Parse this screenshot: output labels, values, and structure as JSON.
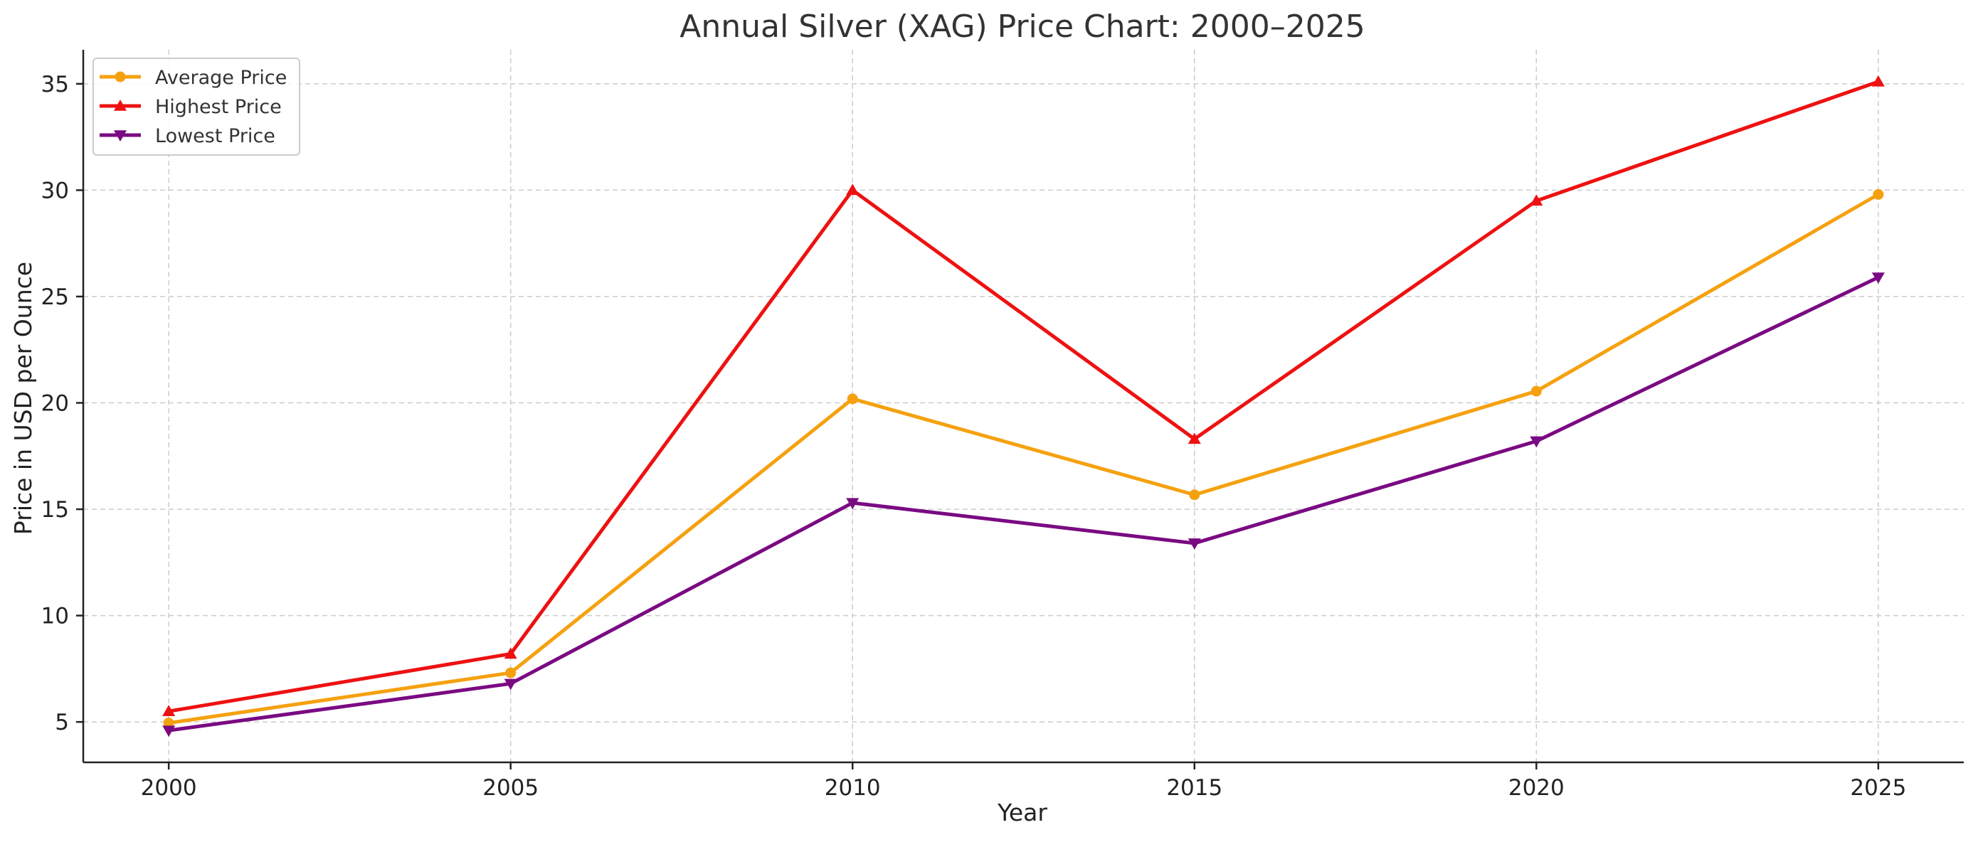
{
  "chart_data": {
    "type": "line",
    "title": "Annual Silver (XAG) Price Chart: 2000–2025",
    "xlabel": "Year",
    "ylabel": "Price in USD per Ounce",
    "x": [
      2000,
      2005,
      2010,
      2015,
      2020,
      2025
    ],
    "xticks": [
      "2000",
      "2005",
      "2010",
      "2015",
      "2020",
      "2025"
    ],
    "yticks": [
      "5",
      "10",
      "15",
      "20",
      "25",
      "30",
      "35"
    ],
    "xlim": [
      1998.75,
      2026.25
    ],
    "ylim": [
      3.1,
      36.6
    ],
    "grid": true,
    "legend_position": "top-left",
    "series": [
      {
        "name": "Average Price",
        "color": "#f5a10f",
        "marker": "circle",
        "values": [
          4.95,
          7.31,
          20.19,
          15.68,
          20.55,
          29.8
        ]
      },
      {
        "name": "Highest Price",
        "color": "#ee1111",
        "marker": "triangle-up",
        "values": [
          5.5,
          8.2,
          30.0,
          18.3,
          29.5,
          35.1
        ]
      },
      {
        "name": "Lowest Price",
        "color": "#7a0a82",
        "marker": "triangle-down",
        "values": [
          4.6,
          6.8,
          15.3,
          13.4,
          18.2,
          25.9
        ]
      }
    ]
  }
}
